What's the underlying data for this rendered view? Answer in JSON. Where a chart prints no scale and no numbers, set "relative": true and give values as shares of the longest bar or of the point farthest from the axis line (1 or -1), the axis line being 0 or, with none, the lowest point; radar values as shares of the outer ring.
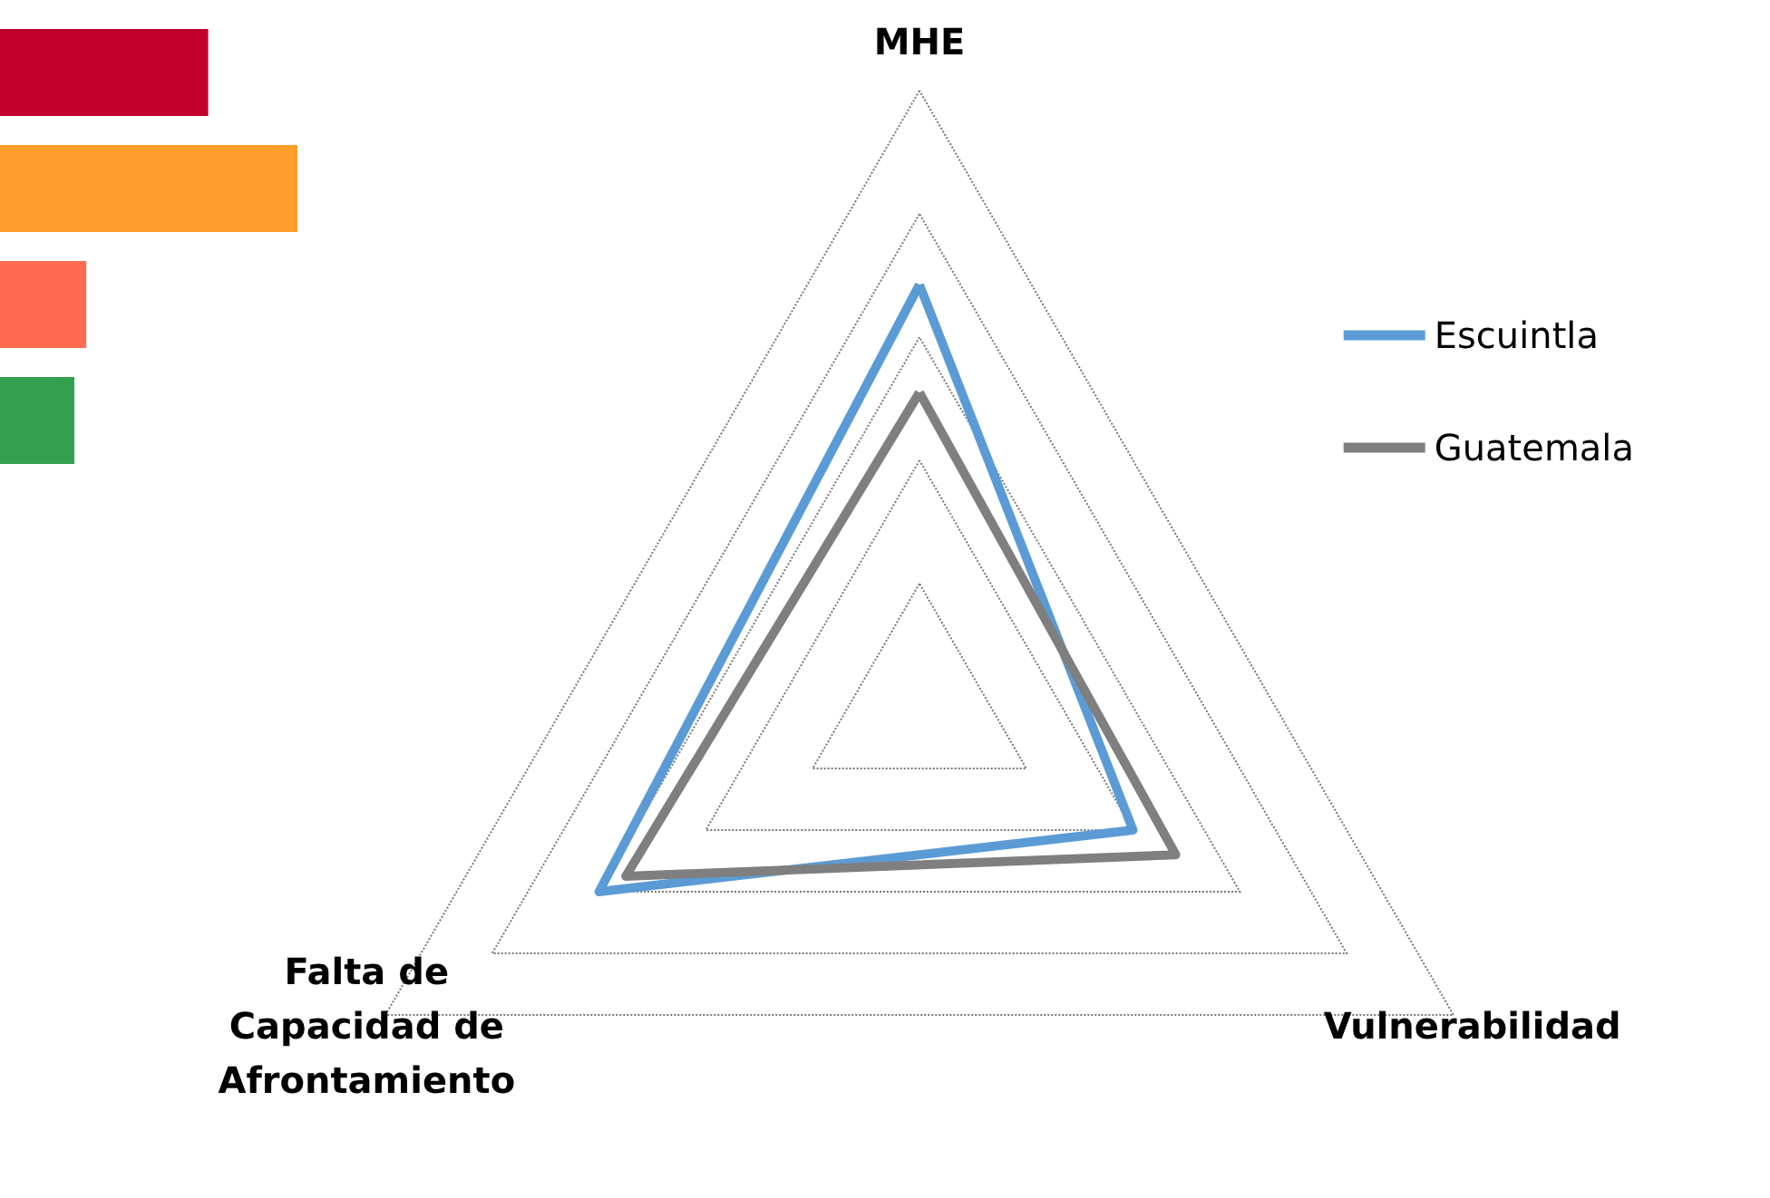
{
  "chart_data": [
    {
      "type": "bar",
      "orientation": "horizontal",
      "relative": true,
      "categories": [
        null,
        null,
        null,
        null
      ],
      "values": [
        0.7,
        1,
        0.29,
        0.25
      ],
      "colors": [
        "#c0002a",
        "#ff9e2b",
        "#ff6b50",
        "#34a050"
      ],
      "tick_labels": false,
      "grid": false,
      "legend": false
    },
    {
      "type": "radar",
      "relative": true,
      "categories": [
        "MHE",
        "Vulnerabilidad",
        "Falta de Capacidad de Afrontamiento"
      ],
      "series": [
        {
          "name": "Escuintla",
          "color": "#5b9bd5",
          "values": [
            0.685,
            0.4,
            0.6
          ]
        },
        {
          "name": "Guatemala",
          "color": "#7f7f7f",
          "values": [
            0.51,
            0.48,
            0.55
          ]
        }
      ],
      "legend": "right",
      "marker": "none",
      "line_style": "solid",
      "grid": true
    }
  ]
}
